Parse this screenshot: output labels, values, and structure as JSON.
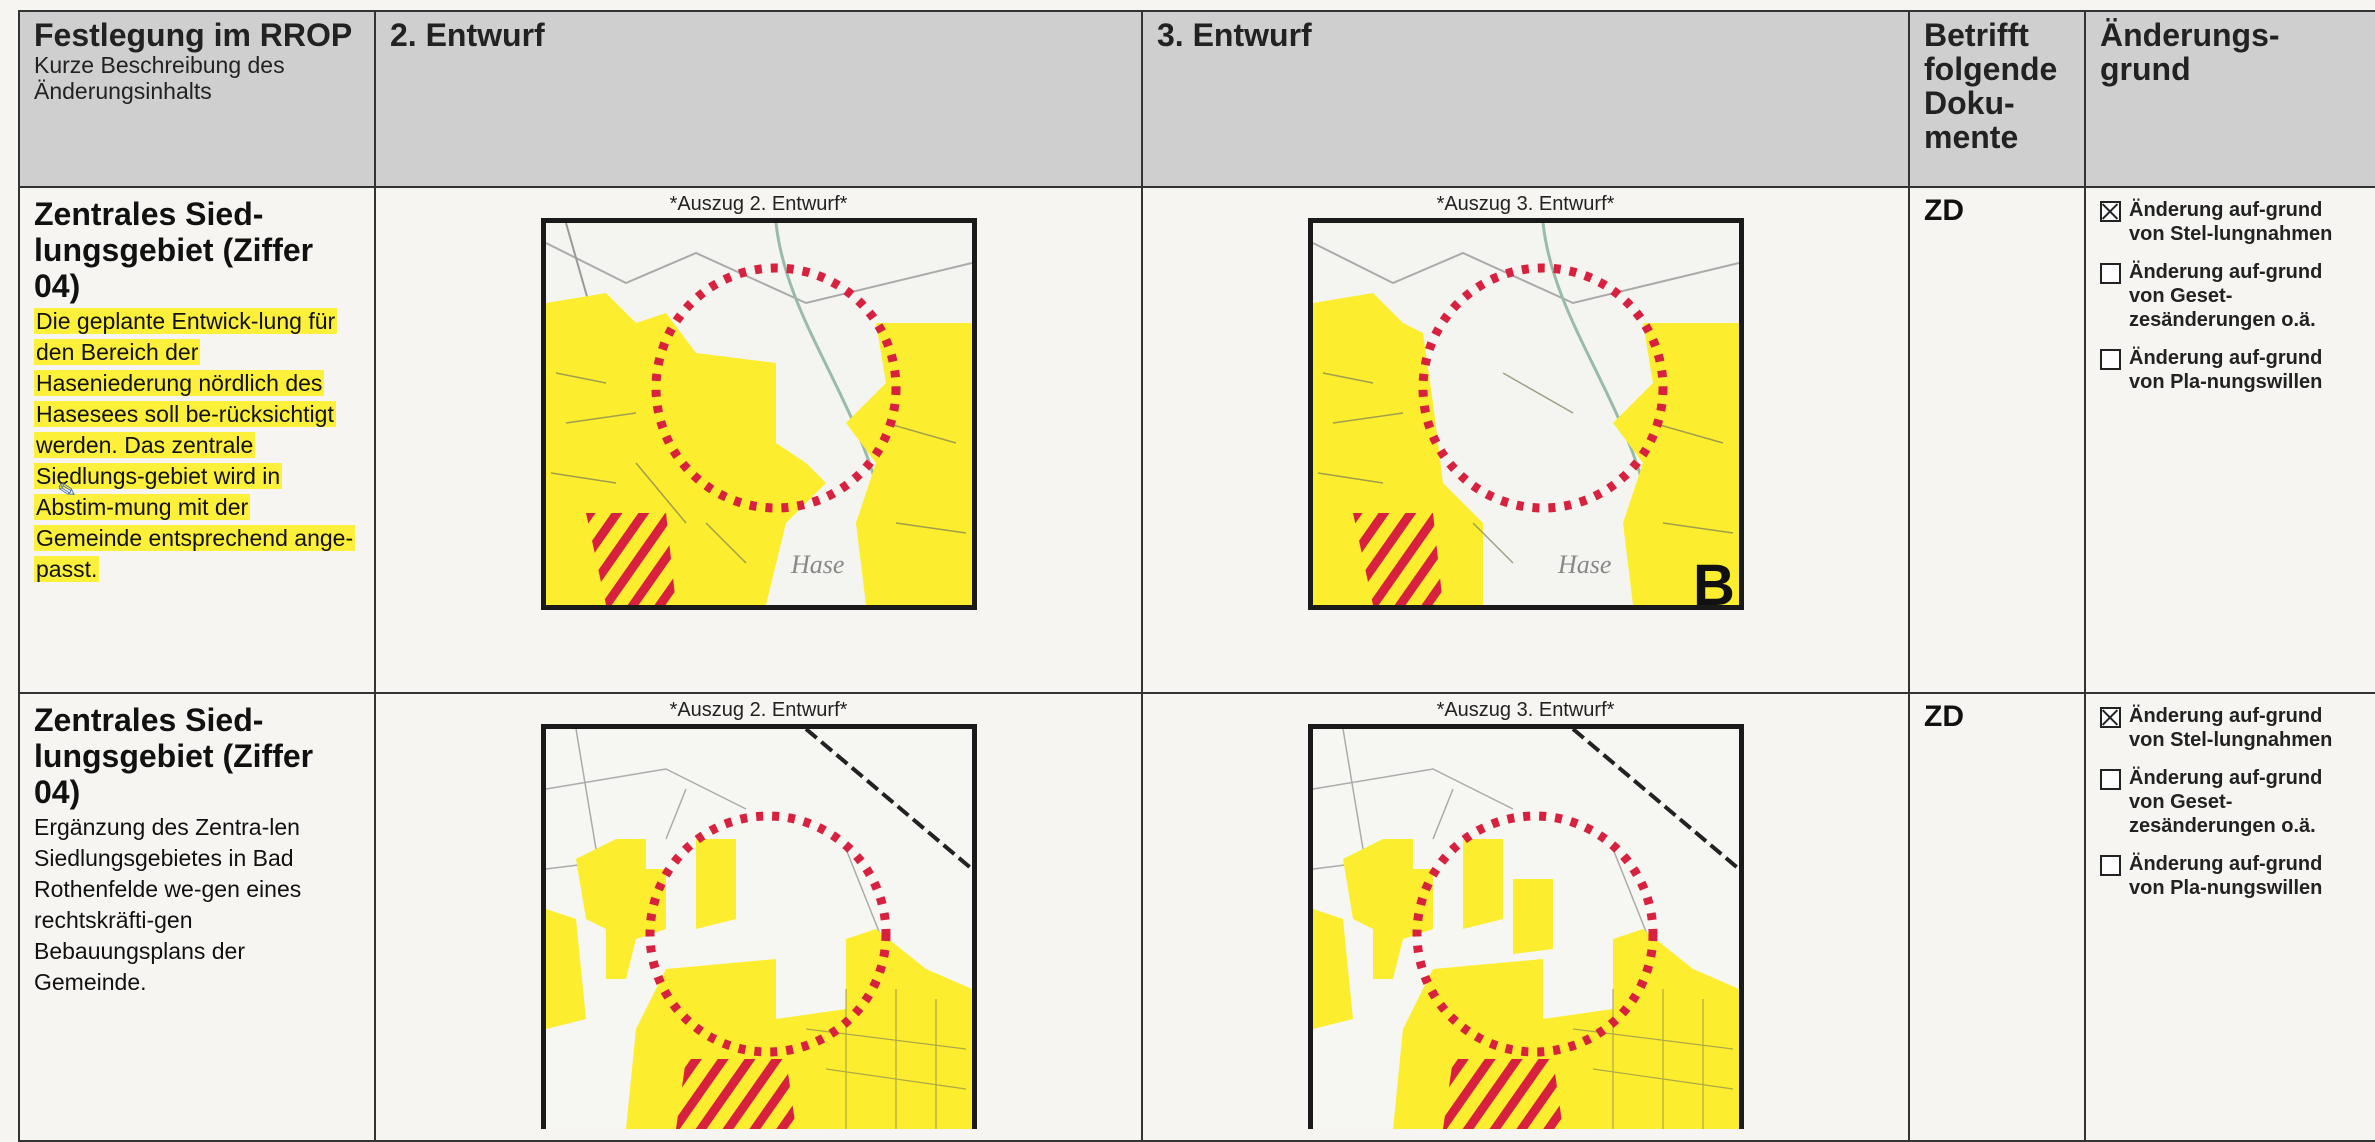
{
  "header": {
    "col1_title": "Festlegung im RROP",
    "col1_subtitle": "Kurze Beschreibung des Änderungsinhalts",
    "col2": "2. Entwurf",
    "col3": "3. Entwurf",
    "col4": "Betrifft folgende Doku-mente",
    "col5": "Änderungs-grund"
  },
  "rows": [
    {
      "title": "Zentrales Sied-lungsgebiet (Ziffer 04)",
      "description": "Die geplante Entwick-lung für den Bereich der Haseniederung nördlich des Hasesees soll be-rücksichtigt werden. Das zentrale Siedlungs-gebiet wird in Abstim-mung mit der Gemeinde entsprechend ange-passt.",
      "caption_2": "*Auszug 2. Entwurf*",
      "caption_3": "*Auszug 3. Entwurf*",
      "map_labels": [
        "Hase",
        "Hase",
        "B"
      ],
      "documents": "ZD",
      "reasons": [
        {
          "label": "Änderung auf-grund von Stel-lungnahmen",
          "checked": true
        },
        {
          "label": "Änderung auf-grund von Geset-zesänderungen o.ä.",
          "checked": false
        },
        {
          "label": "Änderung auf-grund von Pla-nungswillen",
          "checked": false
        }
      ]
    },
    {
      "title": "Zentrales Sied-lungsgebiet (Ziffer 04)",
      "description": "Ergänzung des Zentra-len Siedlungsgebietes in Bad Rothenfelde we-gen eines rechtskräfti-gen Bebauungsplans der Gemeinde.",
      "caption_2": "*Auszug 2. Entwurf*",
      "caption_3": "*Auszug 3. Entwurf*",
      "documents": "ZD",
      "reasons": [
        {
          "label": "Änderung auf-grund von Stel-lungnahmen",
          "checked": true
        },
        {
          "label": "Änderung auf-grund von Geset-zesänderungen o.ä.",
          "checked": false
        },
        {
          "label": "Änderung auf-grund von Pla-nungswillen",
          "checked": false
        }
      ]
    }
  ],
  "colors": {
    "settlement_yellow": "#fcee2e",
    "highlight_yellow": "#fdf03a",
    "circle_red": "#d8213f",
    "header_gray": "#cfcfcf"
  },
  "icons": [
    "checkbox-checked-icon",
    "checkbox-empty-icon",
    "comment-marker-icon"
  ]
}
